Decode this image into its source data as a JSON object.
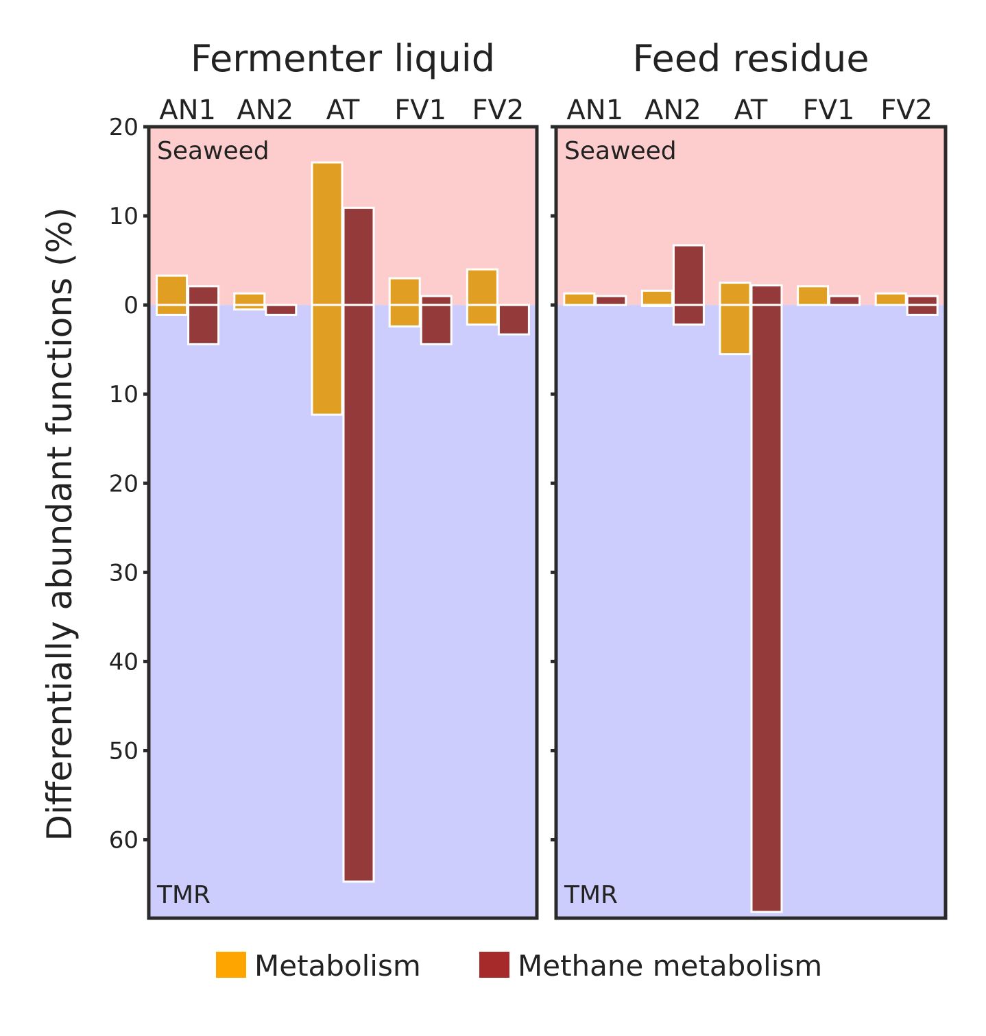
{
  "colors": {
    "metabolism": "#E09E22",
    "methane": "#943A3A",
    "legend_metabolism": "#FFA500",
    "legend_methane": "#A62A2A",
    "seaweed_region": "#FDCDCD",
    "tmr_region": "#CDCDFD",
    "frame": "#2A2A2A"
  },
  "chart_data": {
    "type": "bar",
    "ylabel": "Differentially abundant functions (%)",
    "ylim": [
      -68.8,
      20
    ],
    "y_tick_values": [
      20,
      10,
      0,
      -10,
      -20,
      -30,
      -40,
      -50,
      -60
    ],
    "y_tick_labels": [
      "20",
      "10",
      "0",
      "10",
      "20",
      "30",
      "40",
      "50",
      "60"
    ],
    "categories": [
      "AN1",
      "AN2",
      "AT",
      "FV1",
      "FV2"
    ],
    "region_labels": {
      "up": "Seaweed",
      "down": "TMR"
    },
    "legend": [
      {
        "name": "Metabolism",
        "color_key": "legend_metabolism"
      },
      {
        "name": "Methane metabolism",
        "color_key": "legend_methane"
      }
    ],
    "panels": [
      {
        "title": "Fermenter liquid",
        "series": [
          {
            "name": "Metabolism",
            "up": [
              3.3,
              1.3,
              16.0,
              3.0,
              4.0
            ],
            "down": [
              -1.1,
              -0.5,
              -12.3,
              -2.4,
              -2.2
            ]
          },
          {
            "name": "Methane metabolism",
            "up": [
              2.1,
              0.0,
              10.9,
              1.0,
              0.0
            ],
            "down": [
              -4.4,
              -1.1,
              -64.7,
              -4.4,
              -3.3
            ]
          }
        ]
      },
      {
        "title": "Feed residue",
        "series": [
          {
            "name": "Metabolism",
            "up": [
              1.3,
              1.6,
              2.5,
              2.1,
              1.3
            ],
            "down": [
              0.0,
              -0.1,
              -5.5,
              0.0,
              0.0
            ]
          },
          {
            "name": "Methane metabolism",
            "up": [
              1.0,
              6.7,
              2.2,
              1.0,
              1.0
            ],
            "down": [
              0.0,
              -2.2,
              -68.1,
              0.0,
              -1.1
            ]
          }
        ]
      }
    ]
  }
}
